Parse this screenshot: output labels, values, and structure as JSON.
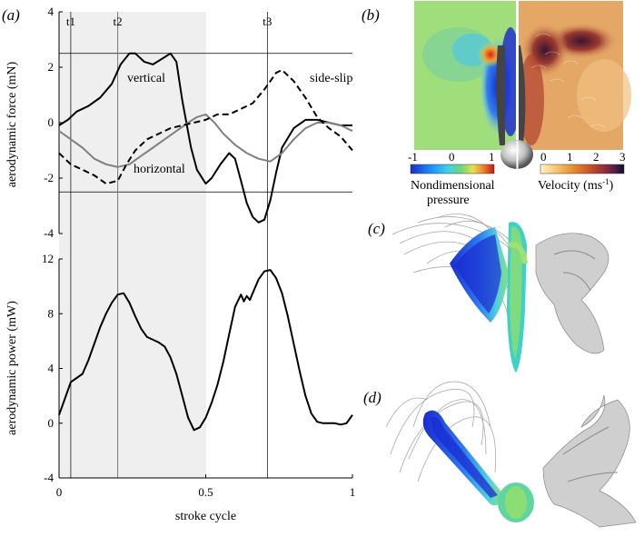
{
  "panel_labels": {
    "a": "(a)",
    "b": "(b)",
    "c": "(c)",
    "d": "(d)"
  },
  "chart_data": [
    {
      "type": "line",
      "ylabel": "aerodynamic force (mN)",
      "xlim": [
        0,
        1
      ],
      "ylim": [
        -4,
        4
      ],
      "y_ticks": [
        "4",
        "2",
        "0",
        "-2",
        "-4"
      ],
      "y_tick_values": [
        4,
        2,
        0,
        -2,
        -4
      ],
      "shaded_region": [
        0,
        0.5
      ],
      "reference_lines_y": [
        2.5,
        -2.5
      ],
      "time_markers": [
        {
          "label": "t1",
          "x": 0.04
        },
        {
          "label": "t2",
          "x": 0.2
        },
        {
          "label": "t3",
          "x": 0.71
        }
      ],
      "series": [
        {
          "name": "vertical",
          "color": "#000000",
          "dash": "solid",
          "x": [
            0,
            0.03,
            0.06,
            0.1,
            0.14,
            0.18,
            0.21,
            0.24,
            0.26,
            0.29,
            0.32,
            0.35,
            0.38,
            0.4,
            0.42,
            0.45,
            0.47,
            0.5,
            0.52,
            0.55,
            0.58,
            0.6,
            0.62,
            0.64,
            0.66,
            0.68,
            0.7,
            0.72,
            0.74,
            0.76,
            0.8,
            0.84,
            0.88,
            0.92,
            0.96,
            1.0
          ],
          "y": [
            -0.1,
            0.1,
            0.4,
            0.6,
            0.9,
            1.4,
            2.1,
            2.5,
            2.5,
            2.2,
            2.1,
            2.3,
            2.5,
            2.2,
            0.8,
            -0.9,
            -1.7,
            -2.2,
            -2.0,
            -1.5,
            -1.1,
            -1.3,
            -2.1,
            -2.9,
            -3.4,
            -3.6,
            -3.5,
            -2.8,
            -1.8,
            -0.9,
            -0.2,
            0.1,
            0.1,
            0.0,
            -0.1,
            -0.1
          ]
        },
        {
          "name": "horizontal",
          "color": "#808080",
          "dash": "solid",
          "x": [
            0,
            0.04,
            0.08,
            0.12,
            0.16,
            0.2,
            0.24,
            0.28,
            0.32,
            0.36,
            0.4,
            0.44,
            0.47,
            0.5,
            0.53,
            0.56,
            0.6,
            0.64,
            0.68,
            0.72,
            0.76,
            0.8,
            0.84,
            0.88,
            0.92,
            0.96,
            1.0
          ],
          "y": [
            -0.3,
            -0.6,
            -0.9,
            -1.3,
            -1.5,
            -1.6,
            -1.5,
            -1.2,
            -0.9,
            -0.6,
            -0.3,
            0.0,
            0.2,
            0.3,
            0.0,
            -0.4,
            -0.8,
            -1.1,
            -1.3,
            -1.4,
            -1.1,
            -0.6,
            -0.2,
            0.0,
            0.0,
            -0.1,
            -0.3
          ]
        },
        {
          "name": "side-slip",
          "color": "#000000",
          "dash": "dashed",
          "x": [
            0,
            0.04,
            0.08,
            0.12,
            0.16,
            0.2,
            0.23,
            0.26,
            0.3,
            0.34,
            0.38,
            0.42,
            0.46,
            0.5,
            0.54,
            0.58,
            0.62,
            0.66,
            0.7,
            0.72,
            0.74,
            0.76,
            0.78,
            0.8,
            0.84,
            0.88,
            0.92,
            0.96,
            1.0
          ],
          "y": [
            -1.1,
            -1.5,
            -1.7,
            -1.9,
            -2.2,
            -2.1,
            -1.5,
            -1.0,
            -0.6,
            -0.4,
            -0.2,
            -0.1,
            0.0,
            0.1,
            0.3,
            0.3,
            0.5,
            0.7,
            1.2,
            1.5,
            1.8,
            1.9,
            1.7,
            1.5,
            0.9,
            0.2,
            -0.2,
            -0.5,
            -1.0
          ]
        }
      ]
    },
    {
      "type": "line",
      "xlabel": "stroke cycle",
      "ylabel": "aerodynamic power (mW)",
      "xlim": [
        0,
        1
      ],
      "ylim": [
        -4,
        12
      ],
      "y_ticks": [
        "12",
        "8",
        "4",
        "0",
        "-4"
      ],
      "y_tick_values": [
        12,
        8,
        4,
        0,
        -4
      ],
      "x_ticks": [
        "0",
        "0.5",
        "1"
      ],
      "x_tick_values": [
        0,
        0.5,
        1
      ],
      "shaded_region": [
        0,
        0.5
      ],
      "series": [
        {
          "name": "",
          "color": "#000000",
          "dash": "solid",
          "x": [
            0,
            0.02,
            0.04,
            0.06,
            0.08,
            0.1,
            0.12,
            0.14,
            0.16,
            0.18,
            0.2,
            0.22,
            0.24,
            0.26,
            0.28,
            0.3,
            0.32,
            0.34,
            0.36,
            0.38,
            0.4,
            0.42,
            0.44,
            0.46,
            0.48,
            0.5,
            0.52,
            0.54,
            0.56,
            0.58,
            0.6,
            0.62,
            0.63,
            0.64,
            0.65,
            0.66,
            0.68,
            0.7,
            0.72,
            0.74,
            0.76,
            0.78,
            0.8,
            0.82,
            0.84,
            0.86,
            0.88,
            0.9,
            0.92,
            0.94,
            0.96,
            0.98,
            1.0
          ],
          "y": [
            0.6,
            1.8,
            3.0,
            3.3,
            3.6,
            4.6,
            5.8,
            7.0,
            8.0,
            8.8,
            9.4,
            9.5,
            8.8,
            7.8,
            6.9,
            6.3,
            6.1,
            5.9,
            5.6,
            4.8,
            3.6,
            2.0,
            0.4,
            -0.5,
            -0.3,
            0.4,
            1.5,
            2.8,
            4.5,
            6.5,
            8.5,
            9.4,
            8.9,
            9.3,
            9.0,
            9.5,
            10.5,
            11.1,
            11.2,
            10.6,
            9.5,
            7.8,
            5.8,
            3.8,
            2.0,
            0.7,
            0.1,
            0.0,
            0.0,
            0.0,
            -0.1,
            0.0,
            0.6
          ]
        }
      ]
    }
  ],
  "panel_b": {
    "colorbar_left": {
      "label_line1": "Nondimensional",
      "label_line2": "pressure",
      "ticks": [
        "-1",
        "0",
        "1"
      ],
      "colors": [
        "#1c2cc8",
        "#1e90ff",
        "#3fd3e6",
        "#6dd57a",
        "#e8e04a",
        "#f07a28",
        "#c01818"
      ]
    },
    "colorbar_right": {
      "label": "Velocity (ms",
      "label_sup": "-1",
      "label_end": ")",
      "ticks": [
        "0",
        "1",
        "2",
        "3"
      ],
      "colors": [
        "#fff3c4",
        "#f6c36a",
        "#e68a2e",
        "#c85028",
        "#8e2a3e",
        "#4a1e4e",
        "#120c24"
      ]
    }
  }
}
